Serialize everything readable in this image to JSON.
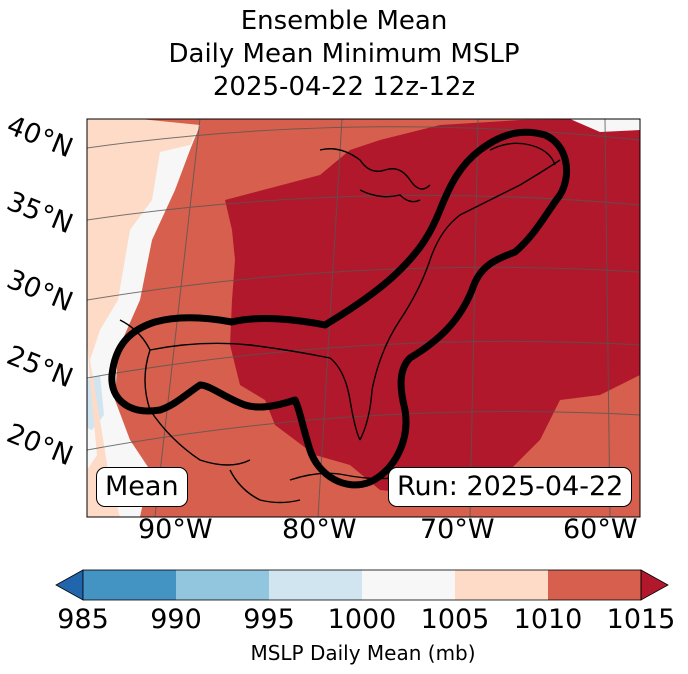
{
  "title": {
    "line1": "Ensemble Mean",
    "line2": "Daily Mean Minimum MSLP",
    "line3": "2025-04-22 12z-12z"
  },
  "map": {
    "mean_label": "Mean",
    "run_label": "Run: 2025-04-22",
    "lat_labels": [
      "40°N",
      "35°N",
      "30°N",
      "25°N",
      "20°N"
    ],
    "lon_labels": [
      "90°W",
      "80°W",
      "70°W",
      "60°W"
    ],
    "colors": {
      "c1010_1015": "#b2182b",
      "c1005_1010": "#d6604d",
      "c1000_1005": "#fddbc7",
      "c995_1000": "#f7f7f7",
      "c990_995": "#d1e5f0"
    }
  },
  "colorbar": {
    "title": "MSLP Daily Mean (mb)",
    "ticks": [
      "985",
      "990",
      "995",
      "1000",
      "1005",
      "1010",
      "1015"
    ],
    "segment_colors": [
      "#4393c3",
      "#92c5de",
      "#d1e5f0",
      "#f7f7f7",
      "#fddbc7",
      "#d6604d"
    ],
    "under_color": "#2166ac",
    "over_color": "#b2182b"
  }
}
